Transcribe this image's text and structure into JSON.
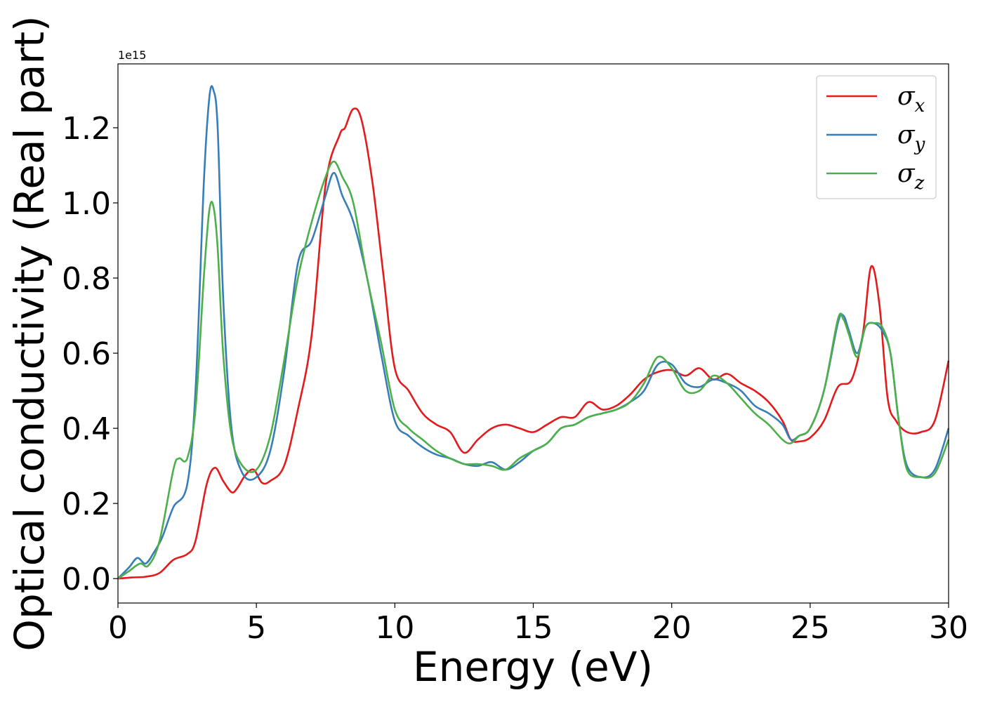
{
  "chart_data": {
    "type": "line",
    "title": "",
    "xlabel": "Energy (eV)",
    "ylabel": "Optical conductivity (Real part)",
    "y_offset_label": "1e15",
    "xlim": [
      0,
      30
    ],
    "ylim": [
      -0.065,
      1.37
    ],
    "xticks": [
      0,
      5,
      10,
      15,
      20,
      25,
      30
    ],
    "xtick_labels": [
      "0",
      "5",
      "10",
      "15",
      "20",
      "25",
      "30"
    ],
    "yticks": [
      0.0,
      0.2,
      0.4,
      0.6,
      0.8,
      1.0,
      1.2
    ],
    "ytick_labels": [
      "0.0",
      "0.2",
      "0.4",
      "0.6",
      "0.8",
      "1.0",
      "1.2"
    ],
    "grid": false,
    "legend_position": "top-right",
    "series": [
      {
        "name": "σx",
        "label_base": "σ",
        "label_sub": "x",
        "color": "#e41a1c",
        "x": [
          0,
          0.5,
          1,
          1.5,
          2,
          2.5,
          2.8,
          3.2,
          3.5,
          3.8,
          4.1,
          4.3,
          4.6,
          4.9,
          5.2,
          5.5,
          6,
          6.5,
          7,
          7.5,
          8,
          8.2,
          8.5,
          8.8,
          9.2,
          9.6,
          10,
          10.5,
          11,
          11.5,
          12,
          12.5,
          13,
          13.5,
          14,
          14.5,
          15,
          15.5,
          16,
          16.5,
          17,
          17.5,
          18,
          18.5,
          19,
          19.5,
          20,
          20.5,
          21,
          21.5,
          22,
          22.5,
          23,
          23.5,
          24,
          24.3,
          24.6,
          25,
          25.5,
          26,
          26.5,
          26.9,
          27.2,
          27.5,
          27.8,
          28.1,
          28.5,
          29,
          29.5,
          30
        ],
        "y": [
          0,
          0.003,
          0.005,
          0.015,
          0.05,
          0.065,
          0.1,
          0.25,
          0.295,
          0.26,
          0.23,
          0.24,
          0.275,
          0.29,
          0.255,
          0.26,
          0.3,
          0.45,
          0.65,
          1.05,
          1.18,
          1.2,
          1.25,
          1.22,
          1.05,
          0.8,
          0.56,
          0.5,
          0.44,
          0.41,
          0.39,
          0.335,
          0.37,
          0.4,
          0.41,
          0.4,
          0.39,
          0.41,
          0.43,
          0.43,
          0.47,
          0.45,
          0.46,
          0.49,
          0.53,
          0.55,
          0.555,
          0.54,
          0.56,
          0.53,
          0.545,
          0.52,
          0.5,
          0.47,
          0.42,
          0.37,
          0.365,
          0.375,
          0.42,
          0.51,
          0.53,
          0.65,
          0.83,
          0.73,
          0.48,
          0.42,
          0.39,
          0.39,
          0.42,
          0.58
        ]
      },
      {
        "name": "σy",
        "label_base": "σ",
        "label_sub": "y",
        "color": "#377eb8",
        "x": [
          0,
          0.4,
          0.7,
          1,
          1.3,
          1.6,
          2,
          2.5,
          2.8,
          3.1,
          3.3,
          3.45,
          3.6,
          3.8,
          4.1,
          4.5,
          5,
          5.5,
          6,
          6.5,
          7,
          7.5,
          7.8,
          8.1,
          8.5,
          9,
          9.5,
          10,
          10.5,
          11,
          11.5,
          12,
          12.5,
          13,
          13.5,
          14,
          14.5,
          15,
          15.5,
          16,
          16.5,
          17,
          17.5,
          18,
          18.5,
          19,
          19.5,
          20,
          20.5,
          21,
          21.5,
          22,
          22.5,
          23,
          23.5,
          24,
          24.3,
          24.6,
          25,
          25.5,
          26,
          26.2,
          26.4,
          26.7,
          27,
          27.3,
          27.6,
          27.9,
          28.2,
          28.5,
          29,
          29.5,
          30
        ],
        "y": [
          0,
          0.03,
          0.055,
          0.04,
          0.07,
          0.11,
          0.19,
          0.25,
          0.5,
          1.05,
          1.28,
          1.3,
          1.2,
          0.75,
          0.4,
          0.28,
          0.27,
          0.34,
          0.55,
          0.84,
          0.9,
          1.02,
          1.08,
          1.02,
          0.95,
          0.8,
          0.6,
          0.42,
          0.38,
          0.35,
          0.33,
          0.32,
          0.305,
          0.3,
          0.31,
          0.29,
          0.31,
          0.34,
          0.36,
          0.4,
          0.41,
          0.43,
          0.44,
          0.45,
          0.47,
          0.5,
          0.57,
          0.57,
          0.52,
          0.51,
          0.53,
          0.52,
          0.5,
          0.46,
          0.44,
          0.41,
          0.37,
          0.38,
          0.4,
          0.5,
          0.68,
          0.7,
          0.66,
          0.6,
          0.67,
          0.68,
          0.66,
          0.6,
          0.42,
          0.3,
          0.27,
          0.29,
          0.4
        ]
      },
      {
        "name": "σz",
        "label_base": "σ",
        "label_sub": "z",
        "color": "#4daf4a",
        "x": [
          0,
          0.4,
          0.8,
          1.1,
          1.5,
          2,
          2.2,
          2.5,
          2.8,
          3.1,
          3.3,
          3.45,
          3.6,
          3.8,
          4.1,
          4.5,
          5,
          5.5,
          6,
          6.5,
          7,
          7.5,
          7.8,
          8.1,
          8.5,
          9,
          9.5,
          10,
          10.5,
          11,
          11.5,
          12,
          12.5,
          13,
          13.5,
          14,
          14.5,
          15,
          15.5,
          16,
          16.5,
          17,
          17.5,
          18,
          18.5,
          19,
          19.5,
          20,
          20.5,
          21,
          21.5,
          22,
          22.5,
          23,
          23.5,
          24,
          24.3,
          24.6,
          25,
          25.5,
          26,
          26.2,
          26.4,
          26.7,
          27,
          27.3,
          27.6,
          27.9,
          28.2,
          28.5,
          29,
          29.5,
          30
        ],
        "y": [
          0,
          0.02,
          0.04,
          0.035,
          0.1,
          0.29,
          0.32,
          0.32,
          0.45,
          0.8,
          0.98,
          0.99,
          0.88,
          0.6,
          0.38,
          0.3,
          0.29,
          0.38,
          0.58,
          0.8,
          0.95,
          1.07,
          1.11,
          1.07,
          1.0,
          0.8,
          0.63,
          0.45,
          0.4,
          0.37,
          0.34,
          0.32,
          0.305,
          0.305,
          0.3,
          0.29,
          0.32,
          0.34,
          0.36,
          0.4,
          0.41,
          0.43,
          0.44,
          0.45,
          0.47,
          0.52,
          0.59,
          0.56,
          0.5,
          0.5,
          0.54,
          0.52,
          0.48,
          0.44,
          0.41,
          0.37,
          0.36,
          0.38,
          0.4,
          0.5,
          0.69,
          0.69,
          0.65,
          0.59,
          0.67,
          0.68,
          0.67,
          0.6,
          0.42,
          0.29,
          0.27,
          0.28,
          0.37
        ]
      }
    ]
  }
}
